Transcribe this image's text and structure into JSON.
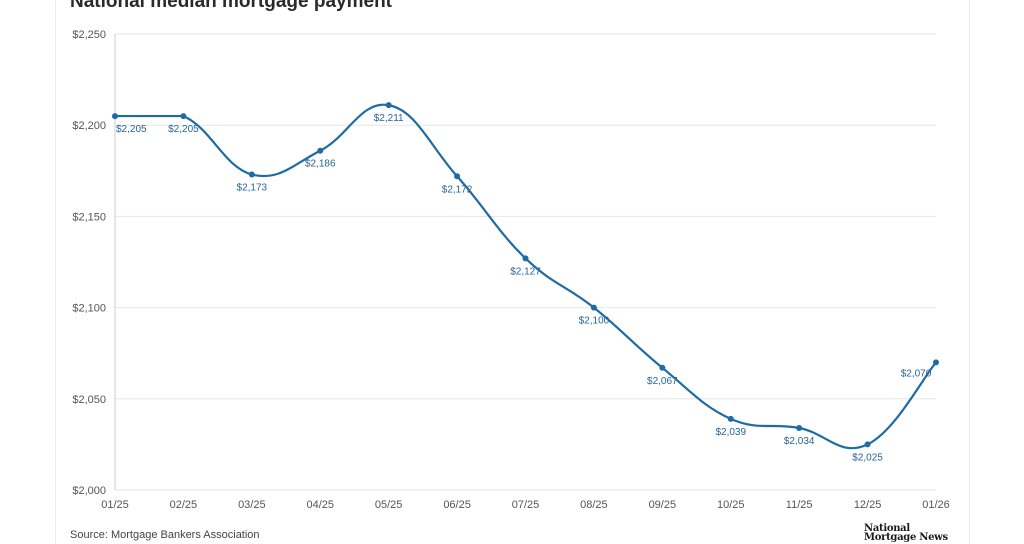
{
  "title": "National median mortgage payment",
  "source": "Source: Mortgage Bankers Association",
  "logo": {
    "line1": "National",
    "line2": "Mortgage News"
  },
  "colors": {
    "line": "#1f6ba5",
    "grid": "#e6e6e6",
    "label": "#2a6496"
  },
  "chart_data": {
    "type": "line",
    "title": "National median mortgage payment",
    "xlabel": "",
    "ylabel": "",
    "categories": [
      "01/25",
      "02/25",
      "03/25",
      "04/25",
      "05/25",
      "06/25",
      "07/25",
      "08/25",
      "09/25",
      "10/25",
      "11/25",
      "12/25",
      "01/26"
    ],
    "series": [
      {
        "values": [
          2205,
          2205,
          2173,
          2186,
          2211,
          2172,
          2127,
          2100,
          2067,
          2039,
          2034,
          2025,
          2070
        ],
        "labels": [
          "$2,205",
          "$2,205",
          "$2,173",
          "$2,186",
          "$2,211",
          "$2,172",
          "$2,127",
          "$2,100",
          "$2,067",
          "$2,039",
          "$2,034",
          "$2,025",
          "$2,070"
        ]
      }
    ],
    "ylim": [
      2000,
      2250
    ],
    "yticks": [
      2000,
      2050,
      2100,
      2150,
      2200,
      2250
    ],
    "ytick_labels": [
      "$2,000",
      "$2,050",
      "$2,100",
      "$2,150",
      "$2,200",
      "$2,250"
    ],
    "grid": "horizontal",
    "legend": "none"
  }
}
